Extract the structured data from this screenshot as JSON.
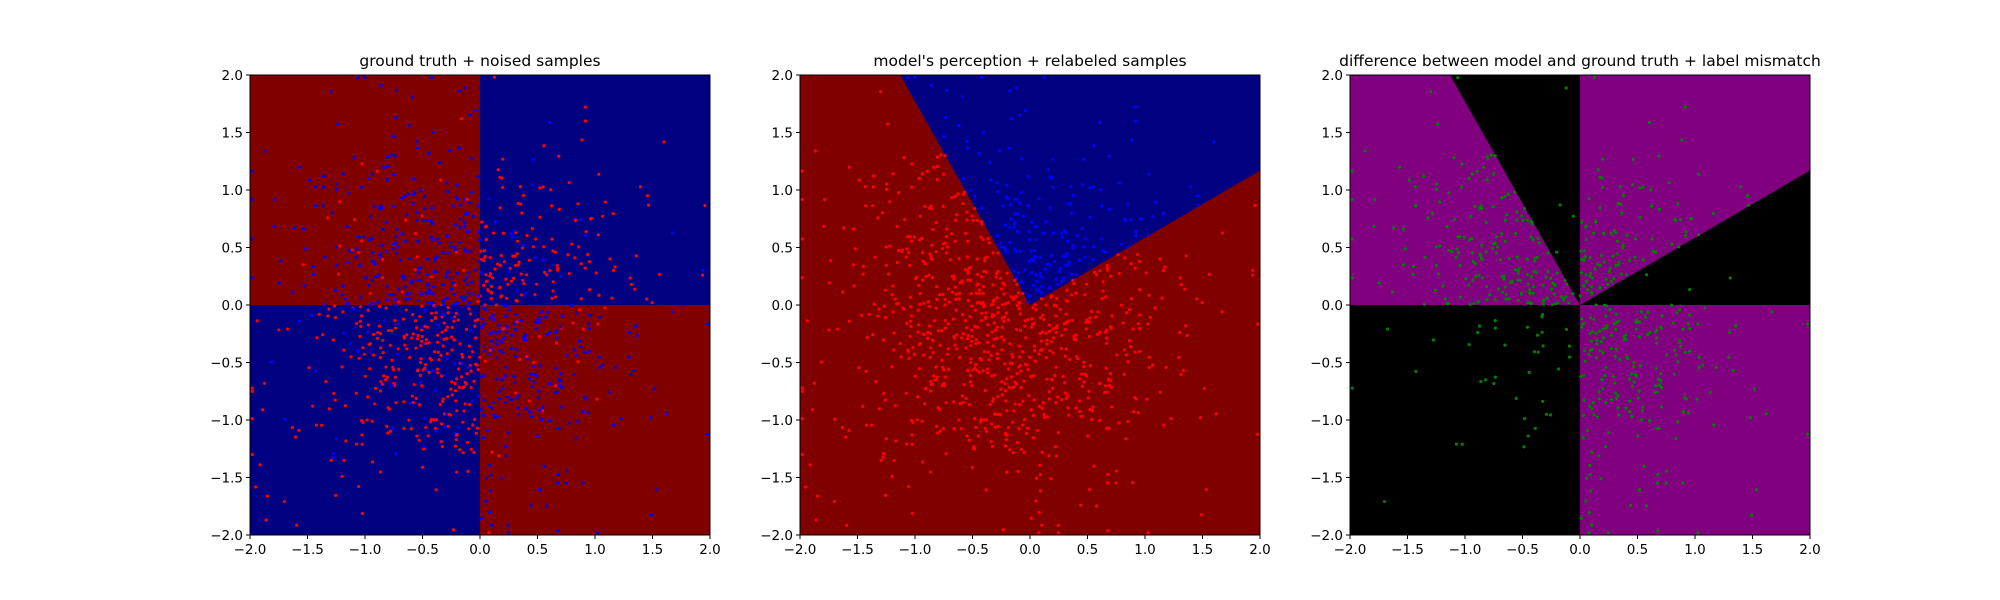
{
  "chart_data": [
    {
      "type": "scatter",
      "title": "ground truth + noised samples",
      "xlim": [
        -2.0,
        2.0
      ],
      "ylim": [
        -2.0,
        2.0
      ],
      "xticks": [
        "−2.0",
        "−1.5",
        "−1.0",
        "−0.5",
        "0.0",
        "0.5",
        "1.0",
        "1.5",
        "2.0"
      ],
      "yticks": [
        "−2.0",
        "−1.5",
        "−1.0",
        "−0.5",
        "0.0",
        "0.5",
        "1.0",
        "1.5",
        "2.0"
      ],
      "background": "decision regions: red where x·y > 0 (quadrants I and III), blue where x·y < 0 (quadrants II and IV)",
      "region_colors": {
        "positive": "#800000",
        "negative": "#000080"
      },
      "series": [
        {
          "color": "#ff0000",
          "description": "samples labelled red (mostly quadrants I and III)"
        },
        {
          "color": "#0000ff",
          "description": "samples labelled blue (mostly quadrants II and IV)"
        }
      ],
      "n_points_approx": 1000
    },
    {
      "type": "scatter",
      "title": "model's perception + relabeled samples",
      "xlim": [
        -2.0,
        2.0
      ],
      "ylim": [
        -2.0,
        2.0
      ],
      "xticks": [
        "−2.0",
        "−1.5",
        "−1.0",
        "−0.5",
        "0.0",
        "0.5",
        "1.0",
        "1.5",
        "2.0"
      ],
      "yticks": [
        "−2.0",
        "−1.5",
        "−1.0",
        "−0.5",
        "0.0",
        "0.5",
        "1.0",
        "1.5",
        "2.0"
      ],
      "background": "blue wedge with apex at (0,0), bounded by the line through (0,0) and (-1.13,2.0) and the line through (0,0) and (2.0,1.17); red elsewhere",
      "region_colors": {
        "blue": "#000080",
        "red": "#800000"
      },
      "boundaries": [
        [
          -1.13,
          2.0
        ],
        [
          2.0,
          1.17
        ]
      ],
      "series": [
        {
          "color": "#0000ff",
          "description": "samples labelled blue"
        },
        {
          "color": "#ff0000",
          "description": "samples labelled red"
        }
      ],
      "n_points_approx": 1000
    },
    {
      "type": "scatter",
      "title": "difference between model and ground truth + label mismatch",
      "xlim": [
        -2.0,
        2.0
      ],
      "ylim": [
        -2.0,
        2.0
      ],
      "xticks": [
        "−2.0",
        "−1.5",
        "−1.0",
        "−0.5",
        "0.0",
        "0.5",
        "1.0",
        "1.5",
        "2.0"
      ],
      "yticks": [
        "−2.0",
        "−1.5",
        "−1.0",
        "−0.5",
        "0.0",
        "0.5",
        "1.0",
        "1.5",
        "2.0"
      ],
      "background": "purple where model and ground truth differ, black where they agree",
      "region_colors": {
        "mismatch": "#800080",
        "agree": "#000000"
      },
      "series": [
        {
          "color": "#008000",
          "description": "samples whose labels mismatch"
        }
      ],
      "n_points_approx": 400
    }
  ]
}
